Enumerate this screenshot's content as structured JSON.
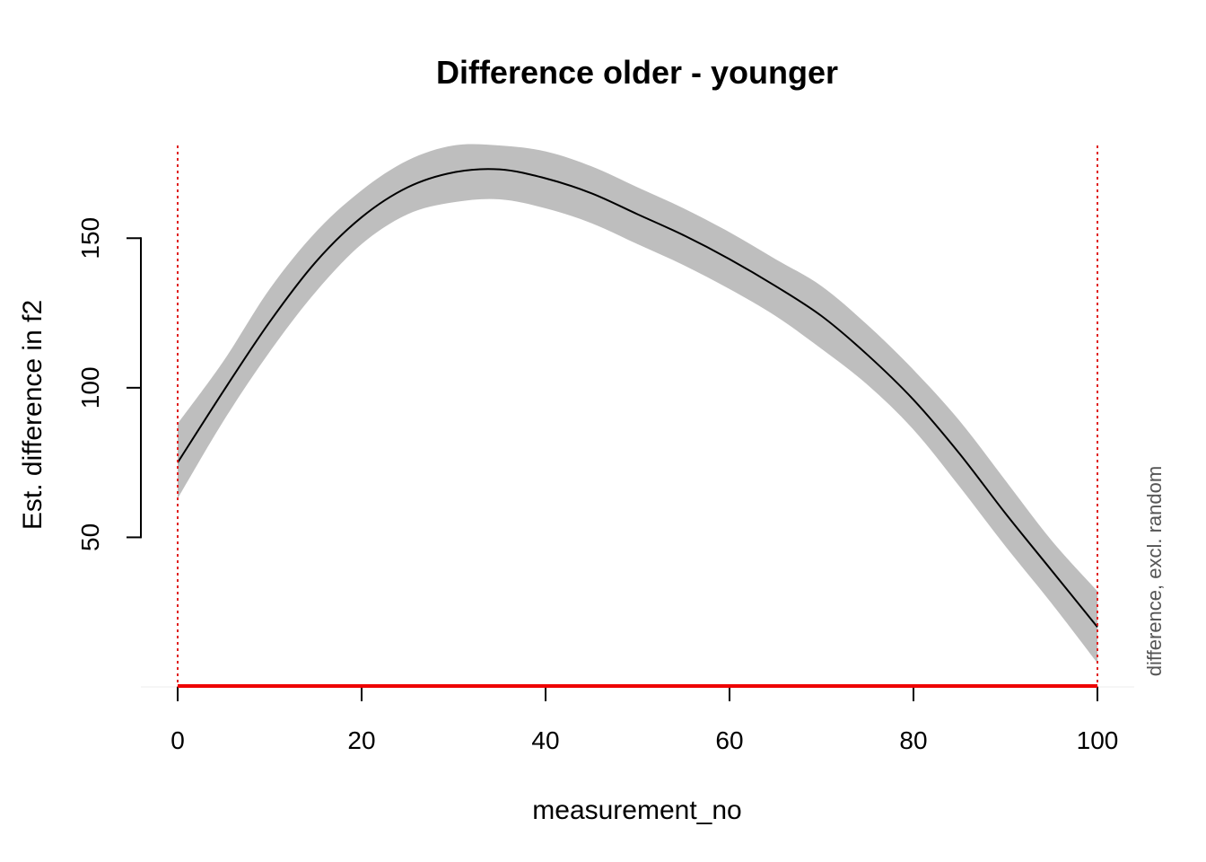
{
  "chart_data": {
    "type": "line",
    "title": "Difference older - younger",
    "xlabel": "measurement_no",
    "ylabel": "Est. difference in f2",
    "side_note": "difference, excl. random",
    "xlim": [
      -4,
      104
    ],
    "ylim": [
      0,
      190
    ],
    "x_ticks": [
      "0",
      "20",
      "40",
      "60",
      "80",
      "100"
    ],
    "x_tick_values": [
      0,
      20,
      40,
      60,
      80,
      100
    ],
    "y_ticks": [
      "50",
      "100",
      "150"
    ],
    "y_tick_values": [
      50,
      100,
      150
    ],
    "grid": false,
    "series": [
      {
        "x": [
          0,
          5,
          10,
          15,
          20,
          25,
          30,
          35,
          40,
          45,
          50,
          55,
          60,
          65,
          70,
          75,
          80,
          85,
          90,
          95,
          100
        ],
        "y": [
          75,
          99,
          122,
          142,
          157,
          167,
          172,
          173,
          170,
          165,
          158,
          151,
          143,
          134,
          124,
          111,
          96,
          78,
          58,
          39,
          20
        ],
        "lower": [
          63,
          89,
          112,
          132,
          148,
          158,
          162,
          163,
          160,
          155,
          148,
          141,
          133,
          124,
          113,
          101,
          86,
          67,
          47,
          28,
          8
        ],
        "upper": [
          88,
          109,
          133,
          152,
          166,
          176,
          181,
          181,
          179,
          174,
          167,
          160,
          152,
          143,
          134,
          121,
          106,
          89,
          69,
          49,
          32
        ],
        "line_color": "#000000",
        "band_color": "#bebebe"
      }
    ],
    "vlines": [
      0,
      100
    ],
    "vline_color": "#e0201f",
    "significant_interval": [
      0,
      100
    ],
    "significant_color": "#ee0000"
  }
}
